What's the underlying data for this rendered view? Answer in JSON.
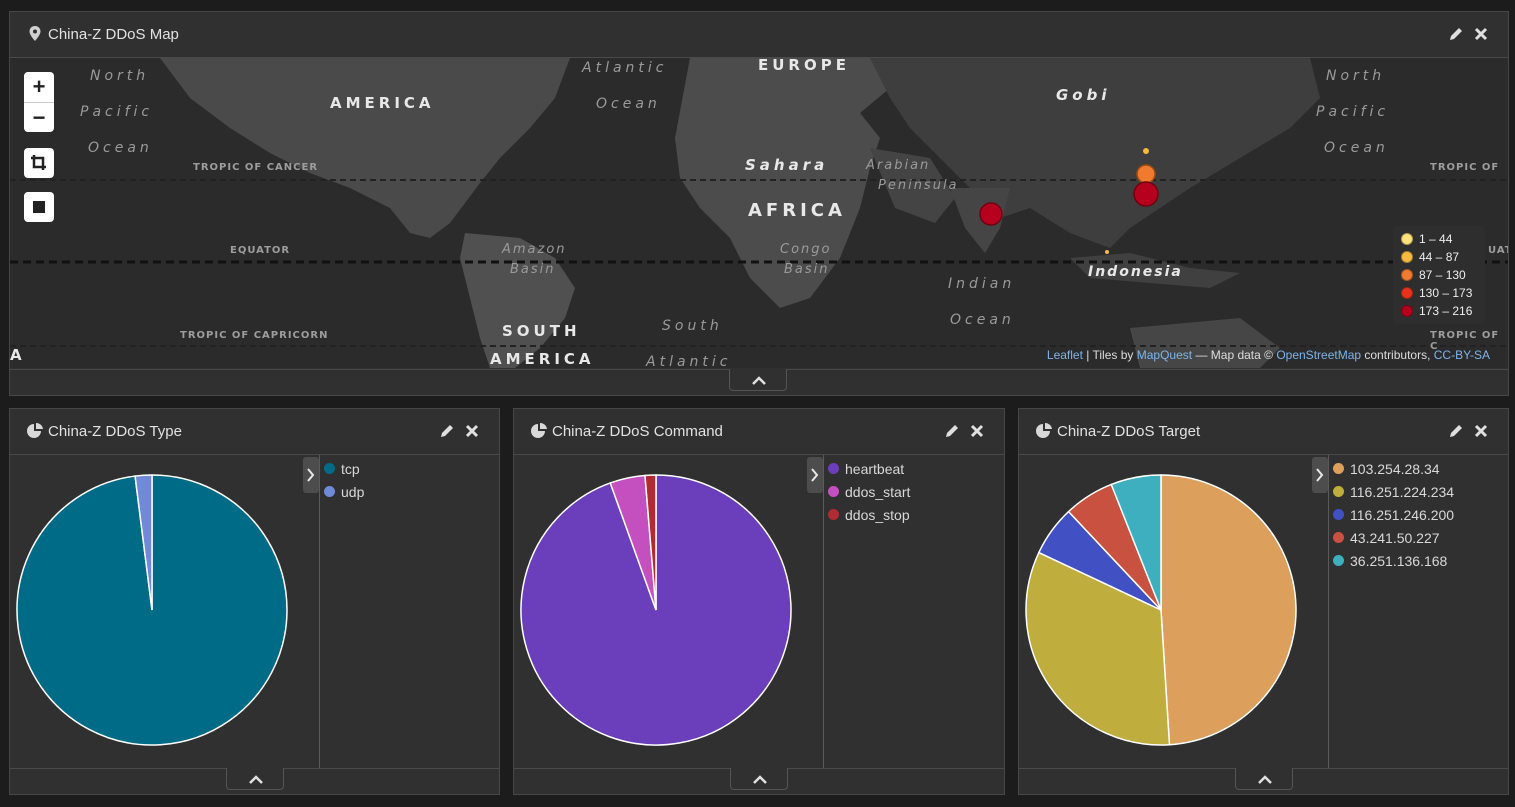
{
  "map_panel": {
    "title": "China-Z DDoS Map",
    "icon": "map-marker-icon",
    "zoom_in": "+",
    "zoom_out": "−",
    "labels": {
      "north_pacific_1": "North",
      "north_pacific_2": "Pacific",
      "north_pacific_3": "Ocean",
      "america": "AMERICA",
      "atlantic": "Atlantic",
      "atlantic_ocean": "Ocean",
      "europe": "EUROPE",
      "gobi": "Gobi",
      "north_2_1": "North",
      "north_2_2": "Pacific",
      "north_2_3": "Ocean",
      "tropic_cancer": "TROPIC OF CANCER",
      "tropic_cancer_2": "TROPIC OF",
      "sahara": "Sahara",
      "arabian": "Arabian",
      "peninsula": "Peninsula",
      "africa": "AFRICA",
      "equator": "EQUATOR",
      "equator_2": "UAT",
      "amazon": "Amazon",
      "basin": "Basin",
      "congo": "Congo",
      "congo_basin": "Basin",
      "indian": "Indian",
      "indian_ocean": "Ocean",
      "indonesia": "Indonesia",
      "tropic_capricorn": "TROPIC OF CAPRICORN",
      "tropic_capricorn_2": "TROPIC OF C",
      "south": "SOUTH",
      "south_america": "AMERICA",
      "south_atlantic": "South",
      "south_atlantic_2": "Atlantic",
      "edge_a": "A"
    },
    "legend": [
      {
        "label": "1 – 44",
        "color": "#ffe27a"
      },
      {
        "label": "44 – 87",
        "color": "#f8b93c"
      },
      {
        "label": "87 – 130",
        "color": "#f07a2e"
      },
      {
        "label": "130 – 173",
        "color": "#e8331c"
      },
      {
        "label": "173 – 216",
        "color": "#b5001e"
      }
    ],
    "attribution": {
      "leaflet": "Leaflet",
      "sep1": " | Tiles by ",
      "mapquest": "MapQuest",
      "sep2": " — Map data © ",
      "osm": "OpenStreetMap",
      "sep3": " contributors, ",
      "license": "CC-BY-SA"
    }
  },
  "type_panel": {
    "title": "China-Z DDoS Type",
    "icon": "pie-chart-icon",
    "chart_data": {
      "type": "pie",
      "labels": [
        "tcp",
        "udp"
      ],
      "values": [
        98,
        2
      ],
      "colors": [
        "#006b87",
        "#7089d8"
      ]
    }
  },
  "command_panel": {
    "title": "China-Z DDoS Command",
    "icon": "pie-chart-icon",
    "chart_data": {
      "type": "pie",
      "labels": [
        "heartbeat",
        "ddos_start",
        "ddos_stop"
      ],
      "values": [
        94.5,
        4.2,
        1.3
      ],
      "colors": [
        "#6b3fbb",
        "#c450c0",
        "#b22b33"
      ]
    }
  },
  "target_panel": {
    "title": "China-Z DDoS Target",
    "icon": "pie-chart-icon",
    "chart_data": {
      "type": "pie",
      "labels": [
        "103.254.28.34",
        "116.251.224.234",
        "116.251.246.200",
        "43.241.50.227",
        "36.251.136.168"
      ],
      "values": [
        49,
        33,
        6,
        6,
        6
      ],
      "colors": [
        "#dca05c",
        "#bfad3e",
        "#4151c3",
        "#c95140",
        "#3eafbf"
      ]
    }
  }
}
